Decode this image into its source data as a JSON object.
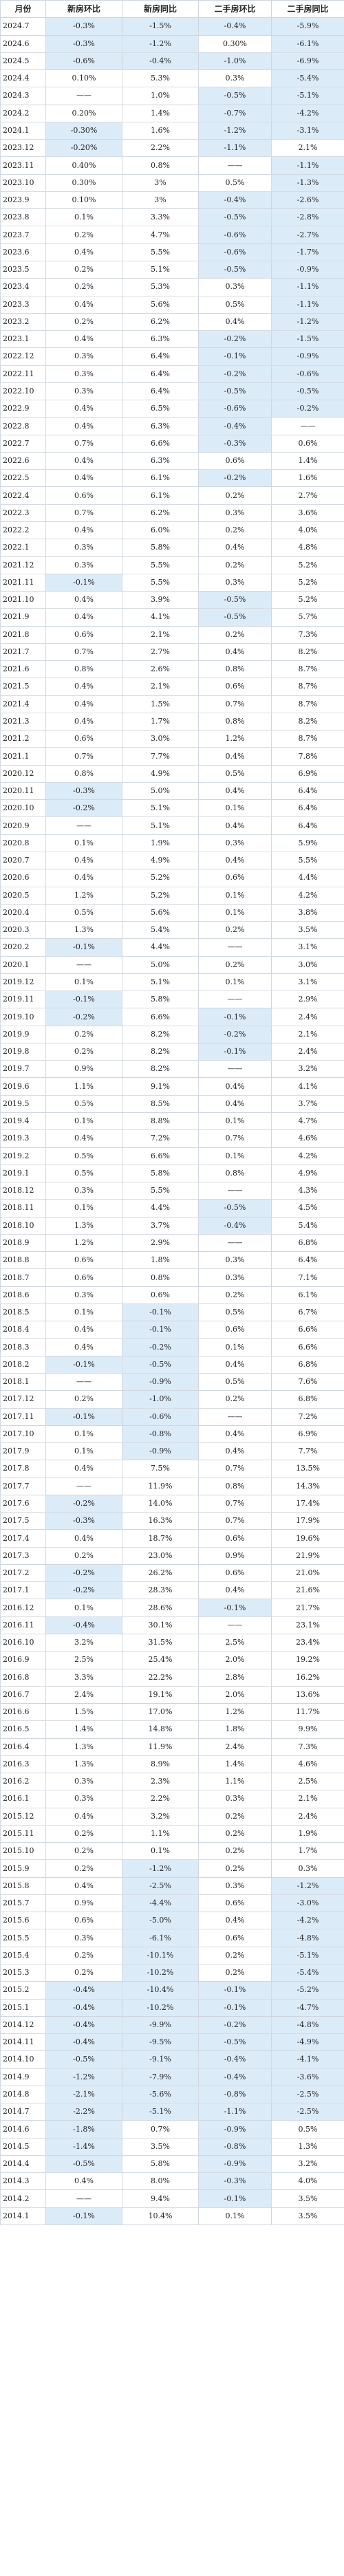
{
  "header": [
    "月份",
    "新房环比",
    "新房同比",
    "二手房环比",
    "二手房同比"
  ],
  "rows": [
    [
      "2024.7",
      "-0.3%",
      "-1.5%",
      "-0.4%",
      "-5.9%"
    ],
    [
      "2024.6",
      "-0.3%",
      "-1.2%",
      "0.30%",
      "-6.1%"
    ],
    [
      "2024.5",
      "-0.6%",
      "-0.4%",
      "-1.0%",
      "-6.9%"
    ],
    [
      "2024.4",
      "0.10%",
      "5.3%",
      "0.3%",
      "-5.4%"
    ],
    [
      "2024.3",
      "——",
      "1.0%",
      "-0.5%",
      "-5.1%"
    ],
    [
      "2024.2",
      "0.20%",
      "1.4%",
      "-0.7%",
      "-4.2%"
    ],
    [
      "2024.1",
      "-0.30%",
      "1.6%",
      "-1.2%",
      "-3.1%"
    ],
    [
      "2023.12",
      "-0.20%",
      "2.2%",
      "-1.1%",
      "2.1%"
    ],
    [
      "2023.11",
      "0.40%",
      "0.8%",
      "——",
      "-1.1%"
    ],
    [
      "2023.10",
      "0.30%",
      "3%",
      "0.5%",
      "-1.3%"
    ],
    [
      "2023.9",
      "0.10%",
      "3%",
      "-0.4%",
      "-2.6%"
    ],
    [
      "2023.8",
      "0.1%",
      "3.3%",
      "-0.5%",
      "-2.8%"
    ],
    [
      "2023.7",
      "0.2%",
      "4.7%",
      "-0.6%",
      "-2.7%"
    ],
    [
      "2023.6",
      "0.4%",
      "5.5%",
      "-0.6%",
      "-1.7%"
    ],
    [
      "2023.5",
      "0.2%",
      "5.1%",
      "-0.5%",
      "-0.9%"
    ],
    [
      "2023.4",
      "0.2%",
      "5.3%",
      "0.3%",
      "-1.1%"
    ],
    [
      "2023.3",
      "0.4%",
      "5.6%",
      "0.5%",
      "-1.1%"
    ],
    [
      "2023.2",
      "0.2%",
      "6.2%",
      "0.4%",
      "-1.2%"
    ],
    [
      "2023.1",
      "0.4%",
      "6.3%",
      "-0.2%",
      "-1.5%"
    ],
    [
      "2022.12",
      "0.3%",
      "6.4%",
      "-0.1%",
      "-0.9%"
    ],
    [
      "2022.11",
      "0.3%",
      "6.4%",
      "-0.2%",
      "-0.6%"
    ],
    [
      "2022.10",
      "0.3%",
      "6.4%",
      "-0.5%",
      "-0.5%"
    ],
    [
      "2022.9",
      "0.4%",
      "6.5%",
      "-0.6%",
      "-0.2%"
    ],
    [
      "2022.8",
      "0.4%",
      "6.3%",
      "-0.4%",
      "——"
    ],
    [
      "2022.7",
      "0.7%",
      "6.6%",
      "-0.3%",
      "0.6%"
    ],
    [
      "2022.6",
      "0.4%",
      "6.3%",
      "0.6%",
      "1.4%"
    ],
    [
      "2022.5",
      "0.4%",
      "6.1%",
      "-0.2%",
      "1.6%"
    ],
    [
      "2022.4",
      "0.6%",
      "6.1%",
      "0.2%",
      "2.7%"
    ],
    [
      "2022.3",
      "0.7%",
      "6.2%",
      "0.3%",
      "3.6%"
    ],
    [
      "2022.2",
      "0.4%",
      "6.0%",
      "0.2%",
      "4.0%"
    ],
    [
      "2022.1",
      "0.3%",
      "5.8%",
      "0.4%",
      "4.8%"
    ],
    [
      "2021.12",
      "0.3%",
      "5.5%",
      "0.2%",
      "5.2%"
    ],
    [
      "2021.11",
      "-0.1%",
      "5.5%",
      "0.3%",
      "5.2%"
    ],
    [
      "2021.10",
      "0.4%",
      "3.9%",
      "-0.5%",
      "5.2%"
    ],
    [
      "2021.9",
      "0.4%",
      "4.1%",
      "-0.5%",
      "5.7%"
    ],
    [
      "2021.8",
      "0.6%",
      "2.1%",
      "0.2%",
      "7.3%"
    ],
    [
      "2021.7",
      "0.7%",
      "2.7%",
      "0.4%",
      "8.2%"
    ],
    [
      "2021.6",
      "0.8%",
      "2.6%",
      "0.8%",
      "8.7%"
    ],
    [
      "2021.5",
      "0.4%",
      "2.1%",
      "0.6%",
      "8.7%"
    ],
    [
      "2021.4",
      "0.4%",
      "1.5%",
      "0.7%",
      "8.7%"
    ],
    [
      "2021.3",
      "0.4%",
      "1.7%",
      "0.8%",
      "8.2%"
    ],
    [
      "2021.2",
      "0.6%",
      "3.0%",
      "1.2%",
      "8.7%"
    ],
    [
      "2021.1",
      "0.7%",
      "7.7%",
      "0.4%",
      "7.8%"
    ],
    [
      "2020.12",
      "0.8%",
      "4.9%",
      "0.5%",
      "6.9%"
    ],
    [
      "2020.11",
      "-0.3%",
      "5.0%",
      "0.4%",
      "6.4%"
    ],
    [
      "2020.10",
      "-0.2%",
      "5.1%",
      "0.1%",
      "6.4%"
    ],
    [
      "2020.9",
      "——",
      "5.1%",
      "0.4%",
      "6.4%"
    ],
    [
      "2020.8",
      "0.1%",
      "1.9%",
      "0.3%",
      "5.9%"
    ],
    [
      "2020.7",
      "0.4%",
      "4.9%",
      "0.4%",
      "5.5%"
    ],
    [
      "2020.6",
      "0.4%",
      "5.2%",
      "0.6%",
      "4.4%"
    ],
    [
      "2020.5",
      "1.2%",
      "5.2%",
      "0.1%",
      "4.2%"
    ],
    [
      "2020.4",
      "0.5%",
      "5.6%",
      "0.1%",
      "3.8%"
    ],
    [
      "2020.3",
      "1.3%",
      "5.4%",
      "0.2%",
      "3.5%"
    ],
    [
      "2020.2",
      "-0.1%",
      "4.4%",
      "——",
      "3.1%"
    ],
    [
      "2020.1",
      "——",
      "5.0%",
      "0.2%",
      "3.0%"
    ],
    [
      "2019.12",
      "0.1%",
      "5.1%",
      "0.1%",
      "3.1%"
    ],
    [
      "2019.11",
      "-0.1%",
      "5.8%",
      "——",
      "2.9%"
    ],
    [
      "2019.10",
      "-0.2%",
      "6.6%",
      "-0.1%",
      "2.4%"
    ],
    [
      "2019.9",
      "0.2%",
      "8.2%",
      "-0.2%",
      "2.1%"
    ],
    [
      "2019.8",
      "0.2%",
      "8.2%",
      "-0.1%",
      "2.4%"
    ],
    [
      "2019.7",
      "0.9%",
      "8.2%",
      "——",
      "3.2%"
    ],
    [
      "2019.6",
      "1.1%",
      "9.1%",
      "0.4%",
      "4.1%"
    ],
    [
      "2019.5",
      "0.5%",
      "8.5%",
      "0.4%",
      "3.7%"
    ],
    [
      "2019.4",
      "0.1%",
      "8.8%",
      "0.1%",
      "4.7%"
    ],
    [
      "2019.3",
      "0.4%",
      "7.2%",
      "0.7%",
      "4.6%"
    ],
    [
      "2019.2",
      "0.5%",
      "6.6%",
      "0.1%",
      "4.2%"
    ],
    [
      "2019.1",
      "0.5%",
      "5.8%",
      "0.8%",
      "4.9%"
    ],
    [
      "2018.12",
      "0.3%",
      "5.5%",
      "——",
      "4.3%"
    ],
    [
      "2018.11",
      "0.1%",
      "4.4%",
      "-0.5%",
      "4.5%"
    ],
    [
      "2018.10",
      "1.3%",
      "3.7%",
      "-0.4%",
      "5.4%"
    ],
    [
      "2018.9",
      "1.2%",
      "2.9%",
      "——",
      "6.8%"
    ],
    [
      "2018.8",
      "0.6%",
      "1.8%",
      "0.3%",
      "6.4%"
    ],
    [
      "2018.7",
      "0.6%",
      "0.8%",
      "0.3%",
      "7.1%"
    ],
    [
      "2018.6",
      "0.3%",
      "0.6%",
      "0.2%",
      "6.1%"
    ],
    [
      "2018.5",
      "0.1%",
      "-0.1%",
      "0.5%",
      "6.7%"
    ],
    [
      "2018.4",
      "0.4%",
      "-0.1%",
      "0.6%",
      "6.6%"
    ],
    [
      "2018.3",
      "0.4%",
      "-0.2%",
      "0.1%",
      "6.6%"
    ],
    [
      "2018.2",
      "-0.1%",
      "-0.5%",
      "0.4%",
      "6.8%"
    ],
    [
      "2018.1",
      "——",
      "-0.9%",
      "0.5%",
      "7.6%"
    ],
    [
      "2017.12",
      "0.2%",
      "-1.0%",
      "0.2%",
      "6.8%"
    ],
    [
      "2017.11",
      "-0.1%",
      "-0.6%",
      "——",
      "7.2%"
    ],
    [
      "2017.10",
      "0.1%",
      "-0.8%",
      "0.4%",
      "6.9%"
    ],
    [
      "2017.9",
      "0.1%",
      "-0.9%",
      "0.4%",
      "7.7%"
    ],
    [
      "2017.8",
      "0.4%",
      "7.5%",
      "0.7%",
      "13.5%"
    ],
    [
      "2017.7",
      "——",
      "11.9%",
      "0.8%",
      "14.3%"
    ],
    [
      "2017.6",
      "-0.2%",
      "14.0%",
      "0.7%",
      "17.4%"
    ],
    [
      "2017.5",
      "-0.3%",
      "16.3%",
      "0.7%",
      "17.9%"
    ],
    [
      "2017.4",
      "0.4%",
      "18.7%",
      "0.6%",
      "19.6%"
    ],
    [
      "2017.3",
      "0.2%",
      "23.0%",
      "0.9%",
      "21.9%"
    ],
    [
      "2017.2",
      "-0.2%",
      "26.2%",
      "0.6%",
      "21.0%"
    ],
    [
      "2017.1",
      "-0.2%",
      "28.3%",
      "0.4%",
      "21.6%"
    ],
    [
      "2016.12",
      "0.1%",
      "28.6%",
      "-0.1%",
      "21.7%"
    ],
    [
      "2016.11",
      "-0.4%",
      "30.1%",
      "——",
      "23.1%"
    ],
    [
      "2016.10",
      "3.2%",
      "31.5%",
      "2.5%",
      "23.4%"
    ],
    [
      "2016.9",
      "2.5%",
      "25.4%",
      "2.0%",
      "19.2%"
    ],
    [
      "2016.8",
      "3.3%",
      "22.2%",
      "2.8%",
      "16.2%"
    ],
    [
      "2016.7",
      "2.4%",
      "19.1%",
      "2.0%",
      "13.6%"
    ],
    [
      "2016.6",
      "1.5%",
      "17.0%",
      "1.2%",
      "11.7%"
    ],
    [
      "2016.5",
      "1.4%",
      "14.8%",
      "1.8%",
      "9.9%"
    ],
    [
      "2016.4",
      "1.3%",
      "11.9%",
      "2.4%",
      "7.3%"
    ],
    [
      "2016.3",
      "1.3%",
      "8.9%",
      "1.4%",
      "4.6%"
    ],
    [
      "2016.2",
      "0.3%",
      "2.3%",
      "1.1%",
      "2.5%"
    ],
    [
      "2016.1",
      "0.3%",
      "2.2%",
      "0.3%",
      "2.1%"
    ],
    [
      "2015.12",
      "0.4%",
      "3.2%",
      "0.2%",
      "2.4%"
    ],
    [
      "2015.11",
      "0.2%",
      "1.1%",
      "0.2%",
      "1.9%"
    ],
    [
      "2015.10",
      "0.2%",
      "0.1%",
      "0.2%",
      "1.7%"
    ],
    [
      "2015.9",
      "0.2%",
      "-1.2%",
      "0.2%",
      "0.3%"
    ],
    [
      "2015.8",
      "0.4%",
      "-2.5%",
      "0.3%",
      "-1.2%"
    ],
    [
      "2015.7",
      "0.9%",
      "-4.4%",
      "0.6%",
      "-3.0%"
    ],
    [
      "2015.6",
      "0.6%",
      "-5.0%",
      "0.4%",
      "-4.2%"
    ],
    [
      "2015.5",
      "0.3%",
      "-6.1%",
      "0.6%",
      "-4.8%"
    ],
    [
      "2015.4",
      "0.2%",
      "-10.1%",
      "0.2%",
      "-5.1%"
    ],
    [
      "2015.3",
      "0.2%",
      "-10.2%",
      "0.2%",
      "-5.4%"
    ],
    [
      "2015.2",
      "-0.4%",
      "-10.4%",
      "-0.1%",
      "-5.2%"
    ],
    [
      "2015.1",
      "-0.4%",
      "-10.2%",
      "-0.1%",
      "-4.7%"
    ],
    [
      "2014.12",
      "-0.4%",
      "-9.9%",
      "-0.2%",
      "-4.8%"
    ],
    [
      "2014.11",
      "-0.4%",
      "-9.5%",
      "-0.5%",
      "-4.9%"
    ],
    [
      "2014.10",
      "-0.5%",
      "-9.1%",
      "-0.4%",
      "-4.1%"
    ],
    [
      "2014.9",
      "-1.2%",
      "-7.9%",
      "-0.4%",
      "-3.6%"
    ],
    [
      "2014.8",
      "-2.1%",
      "-5.6%",
      "-0.8%",
      "-2.5%"
    ],
    [
      "2014.7",
      "-2.2%",
      "-5.1%",
      "-1.1%",
      "-2.5%"
    ],
    [
      "2014.6",
      "-1.8%",
      "0.7%",
      "-0.9%",
      "0.5%"
    ],
    [
      "2014.5",
      "-1.4%",
      "3.5%",
      "-0.8%",
      "1.3%"
    ],
    [
      "2014.4",
      "-0.5%",
      "5.8%",
      "-0.9%",
      "3.2%"
    ],
    [
      "2014.3",
      "0.4%",
      "8.0%",
      "-0.3%",
      "4.0%"
    ],
    [
      "2014.2",
      "——",
      "9.4%",
      "-0.1%",
      "3.5%"
    ],
    [
      "2014.1",
      "-0.1%",
      "10.4%",
      "0.1%",
      "3.5%"
    ]
  ]
}
